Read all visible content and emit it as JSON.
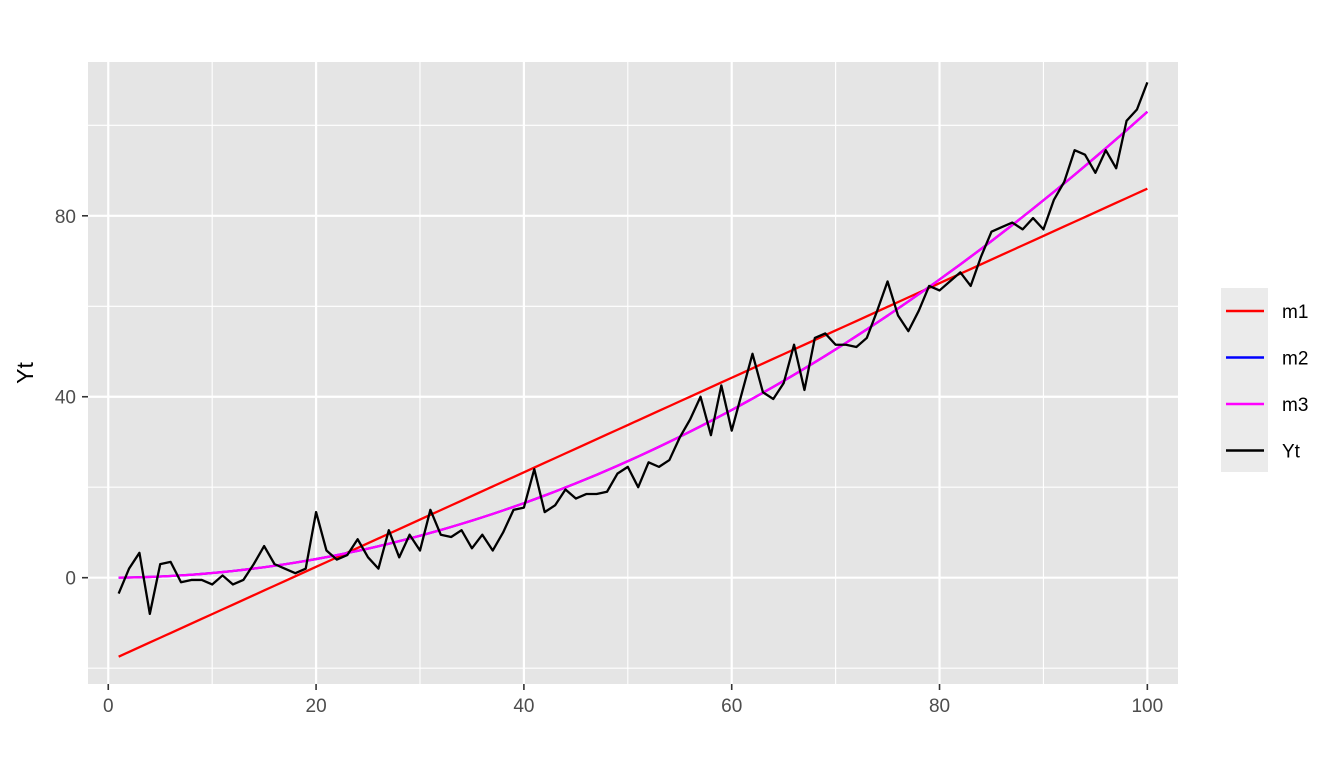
{
  "chart_data": {
    "type": "line",
    "title": "",
    "xlabel": "",
    "ylabel": "Yt",
    "xlim": [
      -1.95,
      102.95
    ],
    "ylim": [
      -23.5,
      114
    ],
    "xticks": [
      0,
      20,
      40,
      60,
      80,
      100
    ],
    "yticks": [
      0,
      40,
      80
    ],
    "x_tick_labels": [
      "0",
      "20",
      "40",
      "60",
      "80",
      "100"
    ],
    "y_tick_labels": [
      "0",
      "40",
      "80"
    ],
    "grid": true,
    "legend_position": "right",
    "panel_background": "#e5e5e5",
    "x_start": 1,
    "series": [
      {
        "name": "m1",
        "color": "#ff0000",
        "kind": "linear",
        "intercept": -18.5,
        "slope": 1.045
      },
      {
        "name": "m2",
        "color": "#0000ff",
        "kind": "quadratic",
        "a": 0,
        "b": 0,
        "c": 0.0103
      },
      {
        "name": "m3",
        "color": "#ff00ff",
        "kind": "quadratic",
        "a": 0,
        "b": 0,
        "c": 0.0103
      },
      {
        "name": "Yt",
        "color": "#000000",
        "kind": "observed",
        "values": [
          -3.5,
          2,
          5.5,
          -8,
          3,
          3.5,
          -1,
          -0.5,
          -0.5,
          -1.5,
          0.5,
          -1.5,
          -0.5,
          3,
          7,
          3,
          2,
          1,
          2,
          14.5,
          6,
          4,
          5,
          8.5,
          4.5,
          2,
          10.5,
          4.5,
          9.5,
          6,
          15,
          9.5,
          9,
          10.5,
          6.5,
          9.5,
          6,
          10,
          15,
          15.5,
          24,
          14.5,
          16,
          19.5,
          17.5,
          18.5,
          18.5,
          19,
          23,
          24.5,
          20,
          25.5,
          24.5,
          26,
          31,
          35,
          40,
          31.5,
          42.5,
          32.5,
          41,
          49.5,
          41,
          39.5,
          43,
          51.5,
          41.5,
          53,
          54,
          51.5,
          51.5,
          51,
          53,
          59,
          65.5,
          58,
          54.5,
          59,
          64.5,
          63.5,
          65.5,
          67.5,
          64.5,
          71,
          76.5,
          77.5,
          78.5,
          77,
          79.5,
          77,
          83.5,
          87.5,
          94.5,
          93.5,
          89.5,
          94.5,
          90.5,
          101,
          103.5,
          109.5
        ]
      }
    ]
  }
}
